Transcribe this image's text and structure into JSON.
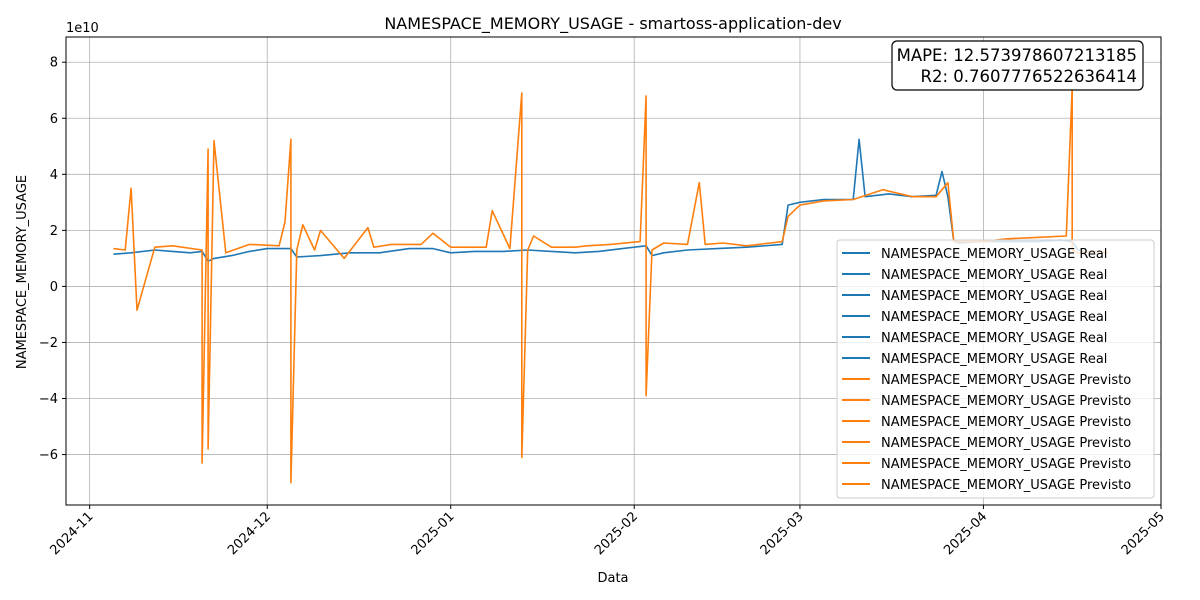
{
  "chart_data": {
    "type": "line",
    "title": "NAMESPACE_MEMORY_USAGE - smartoss-application-dev",
    "xlabel": "Data",
    "ylabel": "NAMESPACE_MEMORY_USAGE",
    "y_scale_label": "1e10",
    "x_ticks": [
      "2024-11",
      "2024-12",
      "2025-01",
      "2025-02",
      "2025-03",
      "2025-04",
      "2025-05"
    ],
    "y_ticks": [
      -6,
      -4,
      -2,
      0,
      2,
      4,
      6,
      8
    ],
    "y_unit_multiplier": 10000000000,
    "xlim": [
      "2024-10-28",
      "2025-05-01"
    ],
    "ylim": [
      -7.8,
      8.9
    ],
    "grid": true,
    "legend_position": "lower right",
    "annotation": {
      "mape": "MAPE: 12.573978607213185",
      "r2": "R2: 0.7607776522636414"
    },
    "legend_entries": [
      "NAMESPACE_MEMORY_USAGE Real",
      "NAMESPACE_MEMORY_USAGE Real",
      "NAMESPACE_MEMORY_USAGE Real",
      "NAMESPACE_MEMORY_USAGE Real",
      "NAMESPACE_MEMORY_USAGE Real",
      "NAMESPACE_MEMORY_USAGE Real",
      "NAMESPACE_MEMORY_USAGE Previsto",
      "NAMESPACE_MEMORY_USAGE Previsto",
      "NAMESPACE_MEMORY_USAGE Previsto",
      "NAMESPACE_MEMORY_USAGE Previsto",
      "NAMESPACE_MEMORY_USAGE Previsto",
      "NAMESPACE_MEMORY_USAGE Previsto"
    ],
    "series": [
      {
        "name": "NAMESPACE_MEMORY_USAGE Real",
        "color": "#1f77b4",
        "x": [
          "2024-11-05",
          "2024-11-08",
          "2024-11-12",
          "2024-11-15",
          "2024-11-18",
          "2024-11-20",
          "2024-11-21",
          "2024-11-22",
          "2024-11-25",
          "2024-11-28",
          "2024-12-01",
          "2024-12-05",
          "2024-12-06",
          "2024-12-10",
          "2024-12-15",
          "2024-12-20",
          "2024-12-25",
          "2024-12-29",
          "2025-01-01",
          "2025-01-05",
          "2025-01-10",
          "2025-01-14",
          "2025-01-18",
          "2025-01-22",
          "2025-01-26",
          "2025-01-30",
          "2025-02-03",
          "2025-02-04",
          "2025-02-06",
          "2025-02-10",
          "2025-02-15",
          "2025-02-20",
          "2025-02-26",
          "2025-02-27",
          "2025-03-01",
          "2025-03-05",
          "2025-03-10",
          "2025-03-11",
          "2025-03-12",
          "2025-03-16",
          "2025-03-20",
          "2025-03-24",
          "2025-03-25",
          "2025-03-26",
          "2025-03-27",
          "2025-03-28",
          "2025-04-01",
          "2025-04-05",
          "2025-04-10",
          "2025-04-14",
          "2025-04-16",
          "2025-04-17",
          "2025-04-18",
          "2025-04-22"
        ],
        "values": [
          1.15,
          1.2,
          1.3,
          1.25,
          1.2,
          1.25,
          0.9,
          1.0,
          1.1,
          1.25,
          1.35,
          1.35,
          1.05,
          1.1,
          1.2,
          1.2,
          1.35,
          1.35,
          1.2,
          1.25,
          1.25,
          1.3,
          1.25,
          1.2,
          1.25,
          1.35,
          1.45,
          1.1,
          1.2,
          1.3,
          1.35,
          1.4,
          1.5,
          2.9,
          3.0,
          3.1,
          3.1,
          5.25,
          3.2,
          3.3,
          3.2,
          3.25,
          4.1,
          3.2,
          1.6,
          1.55,
          1.6,
          1.6,
          1.6,
          1.65,
          1.6,
          1.3,
          1.25,
          1.2
        ]
      },
      {
        "name": "NAMESPACE_MEMORY_USAGE Previsto",
        "color": "#ff7f0e",
        "x": [
          "2024-11-05",
          "2024-11-07",
          "2024-11-08",
          "2024-11-09",
          "2024-11-12",
          "2024-11-15",
          "2024-11-20",
          "2024-11-20",
          "2024-11-21",
          "2024-11-21",
          "2024-11-22",
          "2024-11-24",
          "2024-11-28",
          "2024-12-03",
          "2024-12-04",
          "2024-12-05",
          "2024-12-05",
          "2024-12-06",
          "2024-12-07",
          "2024-12-09",
          "2024-12-10",
          "2024-12-14",
          "2024-12-18",
          "2024-12-19",
          "2024-12-22",
          "2024-12-27",
          "2024-12-29",
          "2025-01-01",
          "2025-01-07",
          "2025-01-08",
          "2025-01-11",
          "2025-01-13",
          "2025-01-13",
          "2025-01-14",
          "2025-01-15",
          "2025-01-18",
          "2025-01-22",
          "2025-01-24",
          "2025-01-28",
          "2025-02-02",
          "2025-02-03",
          "2025-02-03",
          "2025-02-04",
          "2025-02-06",
          "2025-02-10",
          "2025-02-12",
          "2025-02-13",
          "2025-02-16",
          "2025-02-20",
          "2025-02-24",
          "2025-02-26",
          "2025-02-27",
          "2025-03-01",
          "2025-03-05",
          "2025-03-10",
          "2025-03-15",
          "2025-03-20",
          "2025-03-24",
          "2025-03-26",
          "2025-03-27",
          "2025-04-01",
          "2025-04-05",
          "2025-04-10",
          "2025-04-15",
          "2025-04-16",
          "2025-04-16",
          "2025-04-17",
          "2025-04-20",
          "2025-04-22"
        ],
        "values": [
          1.35,
          1.3,
          3.5,
          -0.85,
          1.4,
          1.45,
          1.3,
          -6.3,
          4.9,
          -5.8,
          5.2,
          1.2,
          1.5,
          1.45,
          2.3,
          5.25,
          -7.0,
          1.3,
          2.2,
          1.3,
          2.0,
          1.0,
          2.1,
          1.4,
          1.5,
          1.5,
          1.9,
          1.4,
          1.4,
          2.7,
          1.35,
          6.9,
          -6.1,
          1.3,
          1.8,
          1.4,
          1.4,
          1.45,
          1.5,
          1.6,
          6.8,
          -3.9,
          1.3,
          1.55,
          1.5,
          3.7,
          1.5,
          1.55,
          1.45,
          1.55,
          1.6,
          2.5,
          2.9,
          3.05,
          3.1,
          3.45,
          3.2,
          3.2,
          3.7,
          1.6,
          1.6,
          1.7,
          1.75,
          1.8,
          7.1,
          1.3,
          1.2,
          1.25,
          1.2
        ]
      }
    ]
  }
}
